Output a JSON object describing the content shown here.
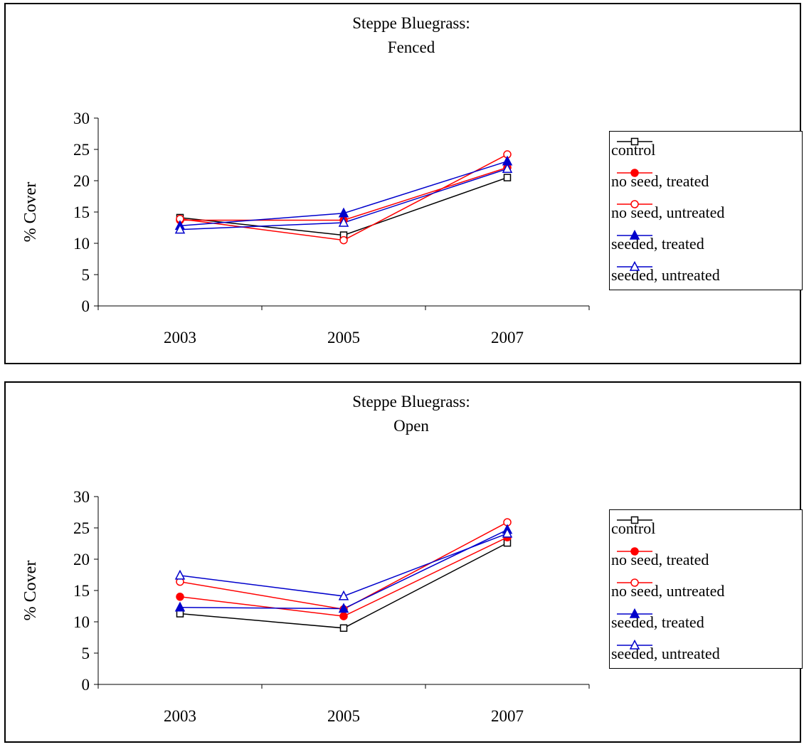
{
  "chart_data": [
    {
      "type": "line",
      "title": "Steppe Bluegrass:",
      "subtitle": "Fenced",
      "xlabel": "",
      "ylabel": "% Cover",
      "categories": [
        "2003",
        "2005",
        "2007"
      ],
      "ylim": [
        0,
        30
      ],
      "yticks": [
        "0",
        "5",
        "10",
        "15",
        "20",
        "25",
        "30"
      ],
      "grid": false,
      "legend_position": "right",
      "series": [
        {
          "name": "control",
          "values": [
            14.1,
            11.3,
            20.5
          ],
          "color": "#000000",
          "marker": "square-open"
        },
        {
          "name": "no seed, treated",
          "values": [
            13.7,
            13.7,
            22.1
          ],
          "color": "#ff0000",
          "marker": "circle-filled"
        },
        {
          "name": "no seed, untreated",
          "values": [
            13.9,
            10.5,
            24.2
          ],
          "color": "#ff0000",
          "marker": "circle-open"
        },
        {
          "name": "seeded, treated",
          "values": [
            12.8,
            14.8,
            23.1
          ],
          "color": "#0000cc",
          "marker": "triangle-filled"
        },
        {
          "name": "seeded, untreated",
          "values": [
            12.2,
            13.3,
            21.9
          ],
          "color": "#0000cc",
          "marker": "triangle-open"
        }
      ]
    },
    {
      "type": "line",
      "title": "Steppe Bluegrass:",
      "subtitle": "Open",
      "xlabel": "",
      "ylabel": "% Cover",
      "categories": [
        "2003",
        "2005",
        "2007"
      ],
      "ylim": [
        0,
        30
      ],
      "yticks": [
        "0",
        "5",
        "10",
        "15",
        "20",
        "25",
        "30"
      ],
      "grid": false,
      "legend_position": "right",
      "series": [
        {
          "name": "control",
          "values": [
            11.3,
            9.0,
            22.6
          ],
          "color": "#000000",
          "marker": "square-open"
        },
        {
          "name": "no seed, treated",
          "values": [
            14.0,
            10.9,
            23.5
          ],
          "color": "#ff0000",
          "marker": "circle-filled"
        },
        {
          "name": "no seed, untreated",
          "values": [
            16.4,
            12.0,
            25.9
          ],
          "color": "#ff0000",
          "marker": "circle-open"
        },
        {
          "name": "seeded, treated",
          "values": [
            12.3,
            12.1,
            24.7
          ],
          "color": "#0000cc",
          "marker": "triangle-filled"
        },
        {
          "name": "seeded, untreated",
          "values": [
            17.4,
            14.1,
            24.1
          ],
          "color": "#0000cc",
          "marker": "triangle-open"
        }
      ]
    }
  ]
}
